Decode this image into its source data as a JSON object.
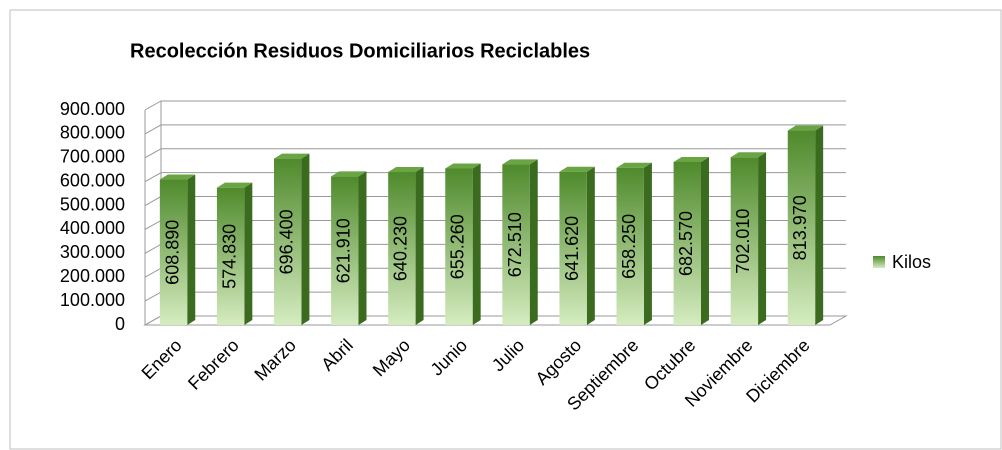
{
  "chart_data": {
    "type": "bar",
    "title": "Recolección Residuos  Domiciliarios Reciclables",
    "categories": [
      "Enero",
      "Febrero",
      "Marzo",
      "Abril",
      "Mayo",
      "Junio",
      "Julio",
      "Agosto",
      "Septiembre",
      "Octubre",
      "Noviembre",
      "Diciembre"
    ],
    "series": [
      {
        "name": "Kilos",
        "color": "#4f8a2c",
        "values": [
          608890,
          574830,
          696400,
          621910,
          640230,
          655260,
          672510,
          641620,
          658250,
          682570,
          702010,
          813970
        ],
        "value_labels": [
          "608.890",
          "574.830",
          "696.400",
          "621.910",
          "640.230",
          "655.260",
          "672.510",
          "641.620",
          "658.250",
          "682.570",
          "702.010",
          "813.970"
        ]
      }
    ],
    "ylim": [
      0,
      900000
    ],
    "yticks": [
      0,
      {
        "value": 100000,
        "label": "100.000"
      },
      {
        "value": 200000,
        "label": "200.000"
      },
      {
        "value": 300000,
        "label": "300.000"
      },
      {
        "value": 400000,
        "label": "400.000"
      },
      {
        "value": 500000,
        "label": "500.000"
      },
      {
        "value": 600000,
        "label": "600.000"
      },
      {
        "value": 700000,
        "label": "700.000"
      },
      {
        "value": 800000,
        "label": "800.000"
      },
      {
        "value": 900000,
        "label": "900.000"
      }
    ],
    "grid": true,
    "legend": "right"
  }
}
